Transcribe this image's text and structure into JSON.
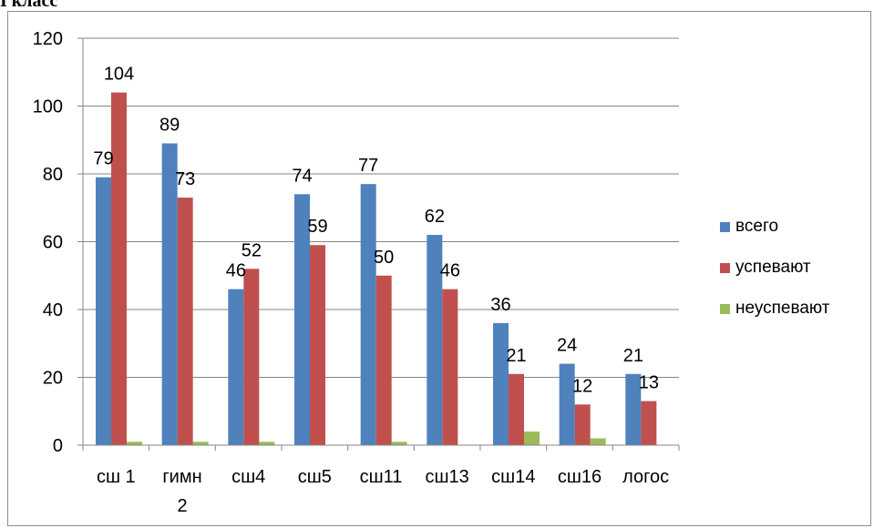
{
  "heading": "I класс",
  "chart_data": {
    "type": "bar",
    "title": "I класс",
    "categories": [
      "сш 1",
      "гимн 2",
      "сш4",
      "сш5",
      "сш11",
      "сш13",
      "сш14",
      "сш16",
      "логос"
    ],
    "series": [
      {
        "name": "всего",
        "color": "#4F81BD",
        "values": [
          79,
          89,
          46,
          74,
          77,
          62,
          36,
          24,
          21
        ]
      },
      {
        "name": "успевают",
        "color": "#C0504D",
        "values": [
          104,
          73,
          52,
          59,
          50,
          46,
          21,
          12,
          13
        ]
      },
      {
        "name": "неуспевают",
        "color": "#9BBB59",
        "values": [
          1,
          1,
          1,
          0,
          1,
          0,
          4,
          2,
          0
        ]
      }
    ],
    "data_labels_series": [
      "всего",
      "успевают"
    ],
    "ylim": [
      0,
      120
    ],
    "yticks": [
      0,
      20,
      40,
      60,
      80,
      100,
      120
    ],
    "grid": true,
    "legend": "right"
  }
}
